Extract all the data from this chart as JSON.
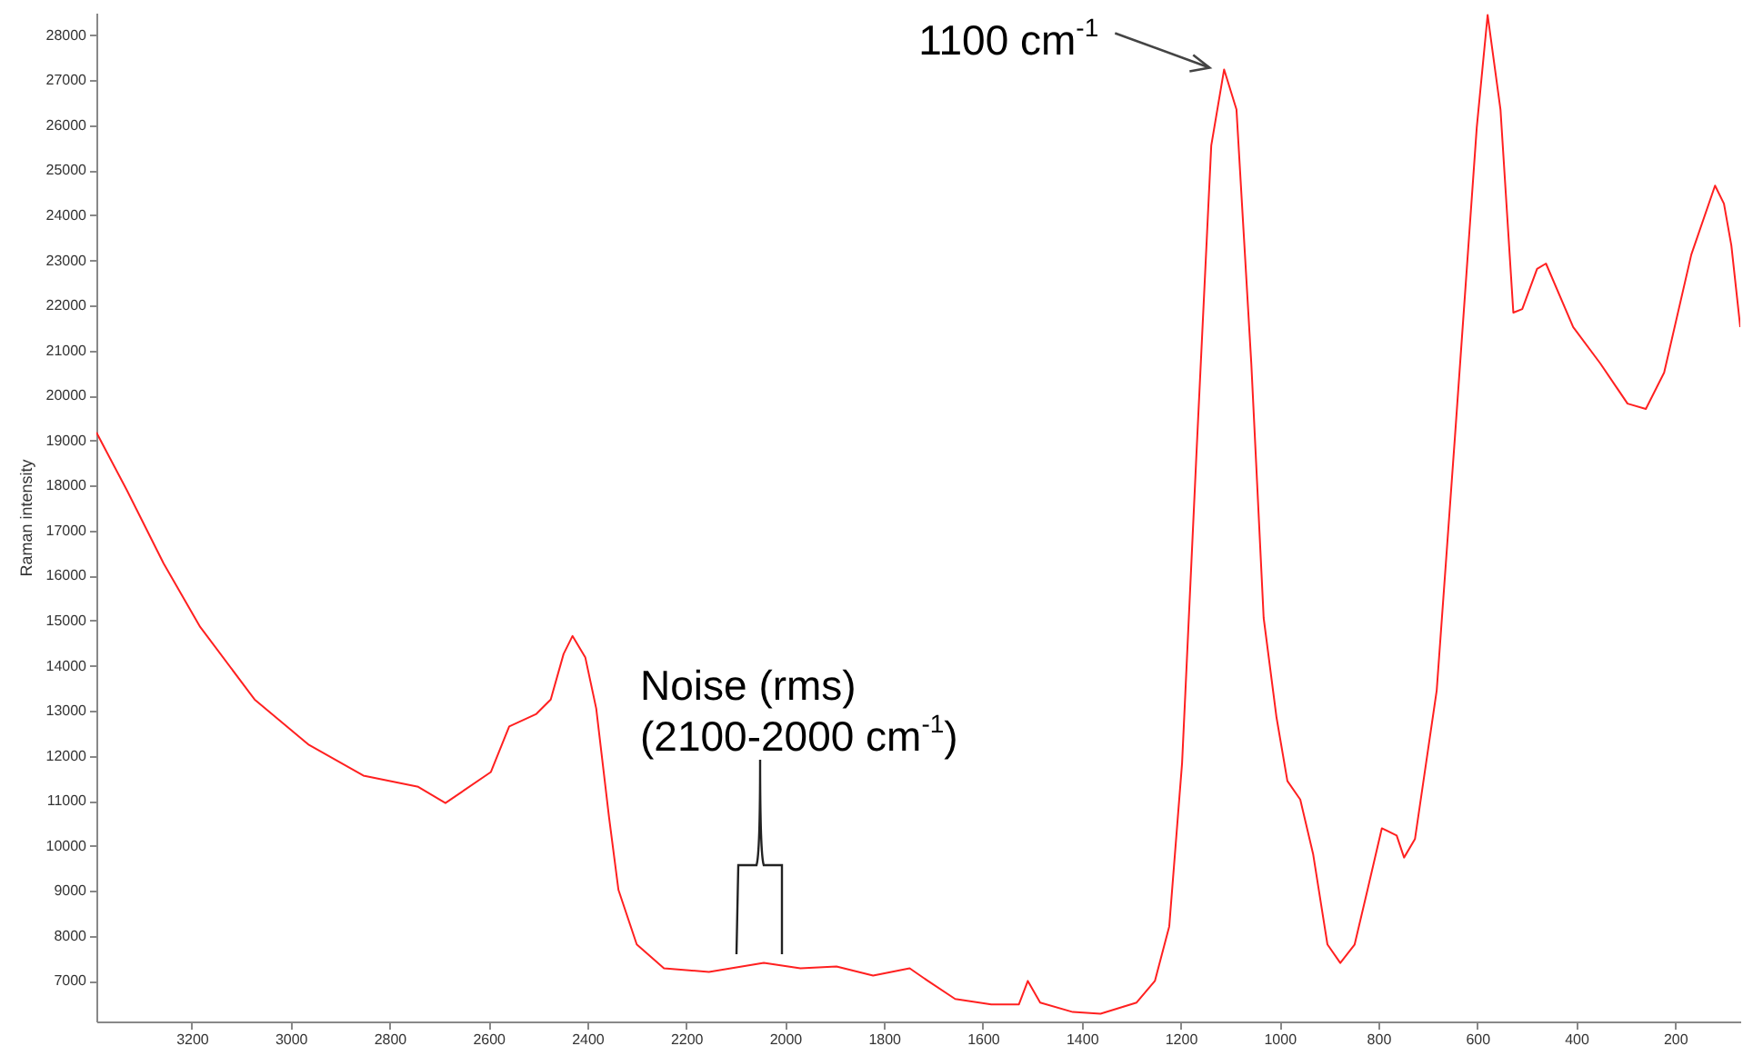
{
  "chart_data": {
    "type": "line",
    "ylabel": "Raman intensity",
    "xlim": [
      3393,
      68
    ],
    "ylim": [
      6100,
      28500
    ],
    "xticks": [
      3200,
      3000,
      2800,
      2600,
      2400,
      2200,
      2000,
      1800,
      1600,
      1400,
      1200,
      1000,
      800,
      600,
      400,
      200
    ],
    "yticks": [
      7000,
      8000,
      9000,
      10000,
      11000,
      12000,
      13000,
      14000,
      15000,
      16000,
      17000,
      18000,
      19000,
      20000,
      21000,
      22000,
      23000,
      24000,
      25000,
      26000,
      27000,
      28000
    ],
    "grid": false,
    "annotations": [
      {
        "text": "1100 cm$^{-1}$",
        "x": 1112,
        "y": 27240
      },
      "Noise (rms)\n(2100-2000 cm$^{-1}$)"
    ],
    "series": [
      {
        "color": "#ff2020",
        "x": [
          3393,
          3331,
          3257,
          3183,
          3073,
          2963,
          2853,
          2742,
          2687,
          2595,
          2558,
          2503,
          2474,
          2448,
          2430,
          2404,
          2382,
          2356,
          2337,
          2300,
          2245,
          2154,
          2043,
          1969,
          1896,
          1822,
          1748,
          1711,
          1656,
          1583,
          1527,
          1509,
          1484,
          1418,
          1362,
          1289,
          1252,
          1223,
          1197,
          1168,
          1138,
          1112,
          1087,
          1057,
          1032,
          1006,
          984,
          958,
          932,
          903,
          877,
          848,
          822,
          793,
          763,
          748,
          726,
          682,
          645,
          601,
          579,
          553,
          527,
          509,
          479,
          461,
          406,
          351,
          296,
          259,
          222,
          167,
          119,
          101,
          86,
          68
        ],
        "values": [
          19180,
          17890,
          16270,
          14860,
          13250,
          12240,
          11560,
          11310,
          10950,
          11640,
          12650,
          12930,
          13250,
          14260,
          14660,
          14180,
          13050,
          10630,
          9020,
          7810,
          7280,
          7200,
          7400,
          7280,
          7320,
          7120,
          7280,
          7000,
          6600,
          6480,
          6480,
          7000,
          6520,
          6310,
          6270,
          6520,
          7000,
          8210,
          11840,
          18690,
          25550,
          27240,
          26350,
          20710,
          15060,
          12850,
          11440,
          11030,
          9820,
          7810,
          7400,
          7810,
          9020,
          10390,
          10230,
          9740,
          10150,
          13450,
          19100,
          25950,
          28450,
          26350,
          21840,
          21920,
          22810,
          22930,
          21520,
          20710,
          19820,
          19700,
          20510,
          23130,
          24660,
          24260,
          23330,
          21520
        ]
      }
    ]
  }
}
